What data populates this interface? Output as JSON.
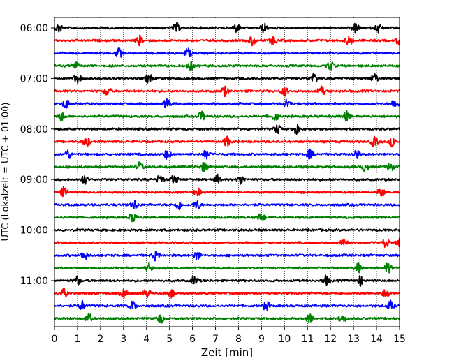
{
  "chart_data": {
    "type": "line",
    "subtype": "helicorder-seismogram",
    "xlabel": "Zeit  [min]",
    "ylabel": "UTC (Lokalzeit = UTC + 01:00)",
    "xlim": [
      0,
      15
    ],
    "x_ticks": [
      0,
      1,
      2,
      3,
      4,
      5,
      6,
      7,
      8,
      9,
      10,
      11,
      12,
      13,
      14,
      15
    ],
    "x_tick_labels": [
      "0",
      "1",
      "2",
      "3",
      "4",
      "5",
      "6",
      "7",
      "8",
      "9",
      "10",
      "11",
      "12",
      "13",
      "14",
      "15"
    ],
    "x_grid": "dotted vertical lines at every minute",
    "y_tick_labels": [
      "06:00",
      "07:00",
      "08:00",
      "09:00",
      "10:00",
      "11:00"
    ],
    "trace_minutes": 15,
    "traces_per_hour": 4,
    "color_cycle": [
      "#000000",
      "#ff0000",
      "#0000ff",
      "#008000"
    ],
    "traces": [
      {
        "start": "06:00",
        "color": "#000000",
        "events": [
          0.2,
          5.3,
          7.9,
          9.1,
          13.1,
          14.1
        ]
      },
      {
        "start": "06:15",
        "color": "#ff0000",
        "events": [
          3.7,
          8.6,
          9.5,
          12.8,
          15.0
        ]
      },
      {
        "start": "06:30",
        "color": "#0000ff",
        "events": [
          2.8,
          5.8
        ]
      },
      {
        "start": "06:45",
        "color": "#008000",
        "events": [
          0.9,
          5.9,
          12.0
        ]
      },
      {
        "start": "07:00",
        "color": "#000000",
        "events": [
          1.0,
          4.1,
          11.3,
          13.9
        ]
      },
      {
        "start": "07:15",
        "color": "#ff0000",
        "events": [
          2.3,
          7.4,
          10.0,
          11.6
        ]
      },
      {
        "start": "07:30",
        "color": "#0000ff",
        "events": [
          0.5,
          4.9,
          10.1,
          14.8
        ]
      },
      {
        "start": "07:45",
        "color": "#008000",
        "events": [
          0.3,
          6.4,
          9.6,
          12.7
        ]
      },
      {
        "start": "08:00",
        "color": "#000000",
        "events": [
          9.7,
          10.5
        ]
      },
      {
        "start": "08:15",
        "color": "#ff0000",
        "events": [
          1.4,
          7.5,
          13.9,
          14.7
        ]
      },
      {
        "start": "08:30",
        "color": "#0000ff",
        "events": [
          0.6,
          4.9,
          6.6,
          11.1,
          13.1
        ]
      },
      {
        "start": "08:45",
        "color": "#008000",
        "events": [
          3.7,
          6.5,
          13.5,
          14.6
        ]
      },
      {
        "start": "09:00",
        "color": "#000000",
        "events": [
          1.3,
          4.6,
          5.2,
          7.1,
          8.1
        ]
      },
      {
        "start": "09:15",
        "color": "#ff0000",
        "events": [
          0.4,
          6.2,
          14.2
        ]
      },
      {
        "start": "09:30",
        "color": "#0000ff",
        "events": [
          3.5,
          5.4,
          6.2
        ]
      },
      {
        "start": "09:45",
        "color": "#008000",
        "events": [
          3.4,
          9.0
        ]
      },
      {
        "start": "10:00",
        "color": "#000000",
        "events": []
      },
      {
        "start": "10:15",
        "color": "#ff0000",
        "events": [
          12.6,
          14.4,
          15.0
        ]
      },
      {
        "start": "10:30",
        "color": "#0000ff",
        "events": [
          1.3,
          4.4,
          6.2
        ]
      },
      {
        "start": "10:45",
        "color": "#008000",
        "events": [
          4.1,
          13.2,
          14.5
        ]
      },
      {
        "start": "11:00",
        "color": "#000000",
        "events": [
          1.0,
          6.1,
          11.8,
          13.3
        ]
      },
      {
        "start": "11:15",
        "color": "#ff0000",
        "events": [
          0.4,
          3.0,
          4.0,
          5.1,
          14.4
        ]
      },
      {
        "start": "11:30",
        "color": "#0000ff",
        "events": [
          1.2,
          3.4,
          9.2,
          14.6
        ]
      },
      {
        "start": "11:45",
        "color": "#008000",
        "events": [
          1.5,
          4.6,
          11.1,
          12.5
        ]
      }
    ]
  }
}
